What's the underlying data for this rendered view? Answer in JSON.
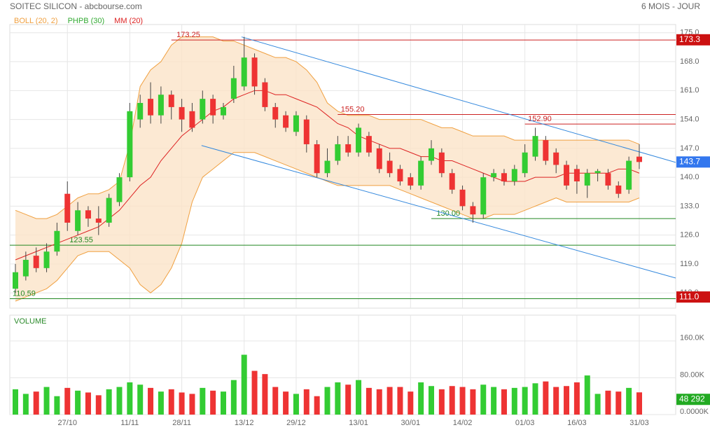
{
  "chart_data": {
    "type": "candlestick",
    "title": "SOITEC SILICON - abcbourse.com",
    "period": "6 MOIS - JOUR",
    "legend": [
      {
        "name": "BOLL (20, 2)",
        "color": "#f0a040"
      },
      {
        "name": "PHPB (30)",
        "color": "#33aa33"
      },
      {
        "name": "MM (20)",
        "color": "#dd2222"
      }
    ],
    "categories": [
      null,
      null,
      null,
      null,
      null,
      "27/10",
      null,
      null,
      null,
      null,
      null,
      "11/11",
      null,
      null,
      null,
      null,
      "28/11",
      null,
      null,
      null,
      null,
      null,
      "13/12",
      null,
      null,
      null,
      null,
      "29/12",
      null,
      null,
      null,
      null,
      null,
      "13/01",
      null,
      null,
      null,
      null,
      "30/01",
      null,
      null,
      null,
      null,
      "14/02",
      null,
      null,
      null,
      null,
      null,
      "01/03",
      null,
      null,
      null,
      null,
      "16/03",
      null,
      null,
      null,
      null,
      null,
      "31/03"
    ],
    "open": [
      113,
      116,
      121,
      118,
      122,
      136,
      127,
      132,
      130,
      129,
      134,
      140,
      154,
      159,
      155,
      160,
      157,
      156,
      154,
      159,
      155,
      159,
      162,
      169,
      163,
      157,
      155,
      151,
      154,
      148,
      141,
      144,
      148,
      146,
      150,
      147,
      144,
      142,
      140,
      138,
      144,
      146,
      141,
      137,
      133,
      131,
      140,
      141,
      139,
      141,
      145,
      149,
      146,
      143,
      142,
      138,
      141,
      141,
      138,
      137,
      145
    ],
    "high": [
      119,
      122,
      123,
      124,
      129,
      139,
      134,
      133,
      133,
      136,
      141,
      158,
      160,
      163,
      162,
      161,
      159,
      158,
      161,
      160,
      158,
      167,
      174,
      170,
      164,
      158,
      156,
      156,
      155,
      149,
      147,
      150,
      150,
      153,
      151,
      148,
      146,
      143,
      141,
      145,
      149,
      147,
      142,
      138,
      134,
      141,
      142,
      142,
      143,
      148,
      152,
      150,
      147,
      144,
      143,
      142,
      142,
      142,
      139,
      145,
      148
    ],
    "low": [
      112,
      115,
      117,
      117,
      121,
      127,
      126,
      128,
      126,
      128,
      133,
      139,
      152,
      153,
      153,
      154,
      151,
      151,
      153,
      153,
      154,
      158,
      161,
      160,
      156,
      152,
      151,
      150,
      146,
      140,
      140,
      143,
      145,
      145,
      145,
      141,
      140,
      138,
      137,
      137,
      143,
      140,
      136,
      132,
      129,
      130,
      139,
      138,
      138,
      140,
      144,
      143,
      141,
      137,
      136,
      135,
      139,
      137,
      135,
      136,
      142
    ],
    "close": [
      117,
      120,
      118,
      122,
      127,
      129,
      132,
      130,
      129,
      135,
      140,
      156,
      158,
      155,
      160,
      157,
      154,
      152,
      159,
      155,
      157,
      164,
      169,
      162,
      157,
      154,
      152,
      155,
      148,
      141,
      144,
      148,
      146,
      152,
      146,
      142,
      141,
      139,
      138,
      144,
      147,
      141,
      137,
      133,
      131,
      140,
      141,
      139,
      142,
      146,
      150,
      144,
      143,
      138,
      139,
      141,
      141.5,
      138,
      136,
      144,
      143.7
    ],
    "up_color": "#33cc33",
    "down_color": "#ee3333",
    "boll_upper": [
      132,
      131,
      130,
      130,
      131,
      133,
      135,
      136,
      136,
      137,
      139,
      148,
      162,
      166,
      168,
      172,
      174,
      174,
      174,
      174,
      173,
      173,
      172,
      171,
      170,
      169,
      169,
      168,
      166,
      163,
      158,
      156,
      155,
      155,
      155,
      154,
      154,
      154,
      154,
      154,
      153,
      152,
      152,
      151,
      150,
      150,
      150,
      150,
      149,
      149,
      149,
      149,
      149,
      149,
      149,
      149,
      149,
      149,
      149,
      149,
      148
    ],
    "boll_lower": [
      110,
      111,
      112,
      113,
      115,
      118,
      121,
      122,
      122,
      122,
      120,
      118,
      114,
      112,
      114,
      118,
      124,
      134,
      140,
      142,
      144,
      146,
      146,
      146,
      145,
      144,
      143,
      142,
      141,
      140,
      139,
      138,
      138,
      138,
      138,
      138,
      138,
      137,
      136,
      135,
      134,
      133,
      132,
      131,
      130,
      130,
      131,
      131,
      131,
      132,
      133,
      134,
      135,
      134,
      134,
      134,
      134,
      134,
      134,
      134,
      135
    ],
    "ma": [
      120,
      121,
      122,
      123,
      124,
      125,
      126,
      127,
      128,
      130,
      132,
      135,
      138,
      140,
      144,
      147,
      150,
      152,
      154,
      156,
      157,
      159,
      160,
      161,
      161,
      160,
      160,
      159,
      158,
      157,
      155,
      153,
      152,
      150,
      149,
      148,
      147,
      147,
      146,
      145,
      145,
      144,
      144,
      143,
      142,
      141,
      140,
      139,
      139,
      139,
      140,
      140,
      140,
      141,
      141,
      141,
      141,
      141,
      142,
      142,
      141
    ],
    "levels": [
      {
        "value": 173.25,
        "label": "173.25",
        "color": "#cc2222"
      },
      {
        "value": 155.2,
        "label": "155.20",
        "color": "#cc2222"
      },
      {
        "value": 152.9,
        "label": "152.90",
        "color": "#cc2222"
      },
      {
        "value": 130,
        "label": "130.00",
        "color": "#228822"
      },
      {
        "value": 123.55,
        "label": "123.55",
        "color": "#228822"
      },
      {
        "value": 110.59,
        "label": "110.59",
        "color": "#228822"
      }
    ],
    "badges": [
      {
        "value": 173.3,
        "label": "173.3",
        "color": "#cc1111"
      },
      {
        "value": 143.7,
        "label": "143.7",
        "color": "#3377ee"
      },
      {
        "value": 111.0,
        "label": "111.0",
        "color": "#cc1111"
      }
    ],
    "trendlines": [
      {
        "x": [
          21.75,
          63.5
        ],
        "y": [
          174,
          143.6
        ]
      },
      {
        "x": [
          17.9,
          63.5
        ],
        "y": [
          147.7,
          115.6
        ]
      }
    ],
    "trend_color": "#3388dd",
    "ylim": [
      108.3,
      177
    ],
    "yticks": [
      {
        "value": 112,
        "label": "112.0"
      },
      {
        "value": 119,
        "label": "119.0"
      },
      {
        "value": 126,
        "label": "126.0"
      },
      {
        "value": 133,
        "label": "133.0"
      },
      {
        "value": 140,
        "label": "140.0"
      },
      {
        "value": 147,
        "label": "147.0"
      },
      {
        "value": 154,
        "label": "154.0"
      },
      {
        "value": 161,
        "label": "161.0"
      },
      {
        "value": 168,
        "label": "168.0"
      },
      {
        "value": 175,
        "label": "175.0"
      }
    ],
    "volume_title": "VOLUME",
    "volume": [
      55000,
      45000,
      50000,
      60000,
      40000,
      58000,
      52000,
      48000,
      42000,
      55000,
      60000,
      70000,
      65000,
      58000,
      50000,
      55000,
      48000,
      45000,
      58000,
      52000,
      50000,
      75000,
      130000,
      95000,
      88000,
      60000,
      50000,
      45000,
      55000,
      40000,
      60000,
      70000,
      65000,
      75000,
      58000,
      55000,
      60000,
      60000,
      50000,
      70000,
      62000,
      55000,
      62000,
      60000,
      55000,
      65000,
      60000,
      55000,
      58000,
      60000,
      68000,
      72000,
      60000,
      62000,
      70000,
      85000,
      45000,
      52000,
      50000,
      58000,
      48292
    ],
    "volume_badge": {
      "value": 48292,
      "label": "48 292",
      "color": "#22aa22"
    },
    "vlim": [
      0,
      216000
    ],
    "vticks": [
      {
        "value": 0,
        "label": "0.0000K"
      },
      {
        "value": 80000,
        "label": "80.00K"
      },
      {
        "value": 160000,
        "label": "160.0K"
      }
    ],
    "grid": true
  }
}
